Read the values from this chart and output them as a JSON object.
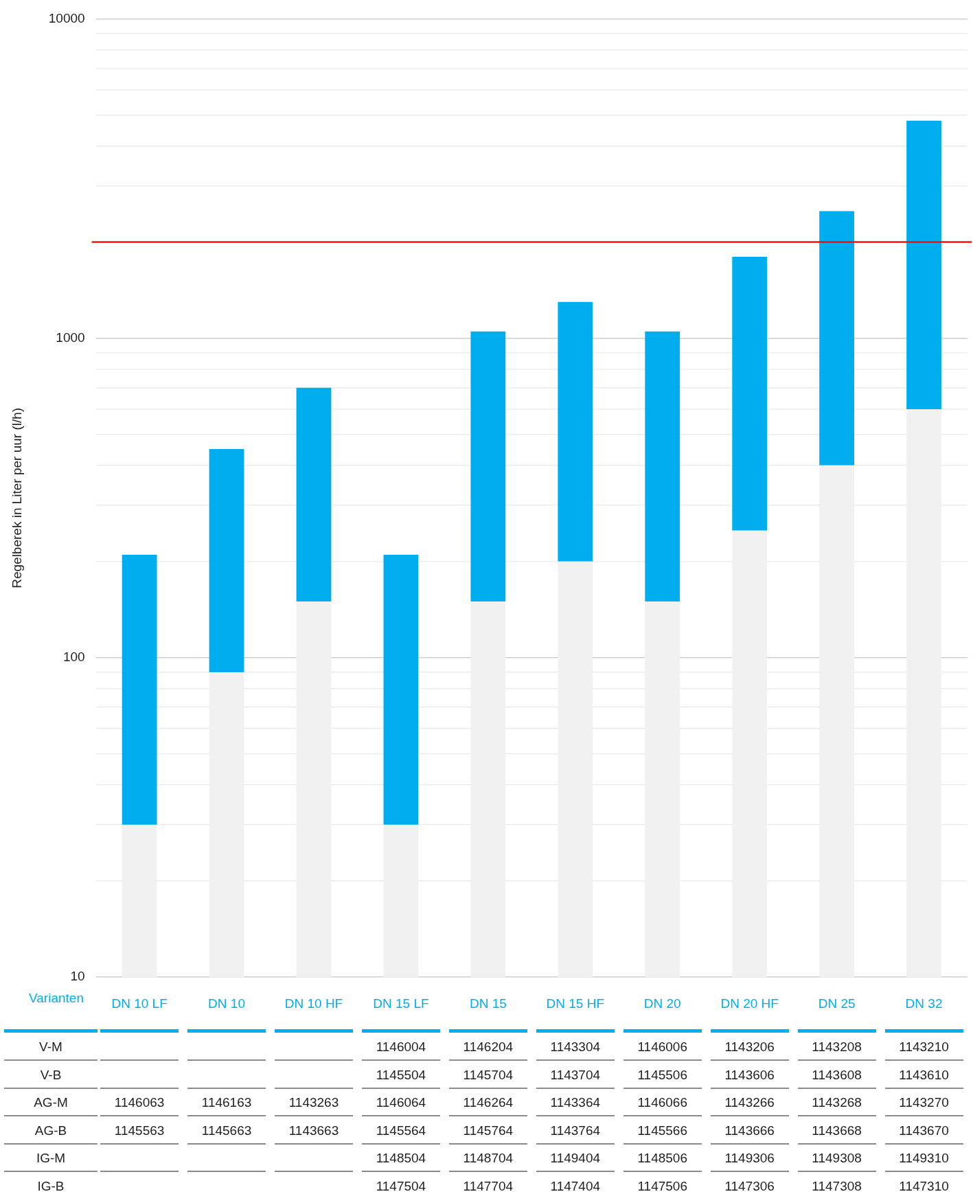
{
  "chart_data": {
    "type": "bar",
    "ylabel": "Regelberek in Liter per uur (l/h)",
    "categories": [
      "DN 10 LF",
      "DN 10",
      "DN 10 HF",
      "DN 15 LF",
      "DN 15",
      "DN 15 HF",
      "DN 20",
      "DN 20 HF",
      "DN 25",
      "DN 32"
    ],
    "stacked": true,
    "series": [
      {
        "color": "#f1f1f1",
        "values": [
          30,
          90,
          150,
          30,
          150,
          200,
          150,
          250,
          400,
          600
        ]
      },
      {
        "color": "#00aeef",
        "values": [
          180,
          360,
          550,
          180,
          900,
          1100,
          900,
          1550,
          2100,
          4200
        ]
      }
    ],
    "log": "y",
    "ylim": [
      10,
      10000
    ],
    "yticks": [
      10,
      {
        "value": 20,
        "label": null
      },
      {
        "value": 30,
        "label": null
      },
      {
        "value": 40,
        "label": null
      },
      {
        "value": 50,
        "label": null
      },
      {
        "value": 60,
        "label": null
      },
      {
        "value": 70,
        "label": null
      },
      {
        "value": 80,
        "label": null
      },
      {
        "value": 90,
        "label": null
      },
      100,
      {
        "value": 200,
        "label": null
      },
      {
        "value": 300,
        "label": null
      },
      {
        "value": 400,
        "label": null
      },
      {
        "value": 500,
        "label": null
      },
      {
        "value": 600,
        "label": null
      },
      {
        "value": 700,
        "label": null
      },
      {
        "value": 800,
        "label": null
      },
      {
        "value": 900,
        "label": null
      },
      1000,
      {
        "value": 2000,
        "label": null
      },
      {
        "value": 3000,
        "label": null
      },
      {
        "value": 4000,
        "label": null
      },
      {
        "value": 5000,
        "label": null
      },
      {
        "value": 6000,
        "label": null
      },
      {
        "value": 7000,
        "label": null
      },
      {
        "value": 8000,
        "label": null
      },
      {
        "value": 9000,
        "label": null
      },
      10000
    ],
    "grid": "y",
    "ref_lines": [
      {
        "axis": "y",
        "value": 2000,
        "color": "#ee1111"
      }
    ],
    "annotations": [
      "Varianten",
      "V-M",
      "1146004",
      "1146204",
      "1143304",
      "1146006",
      "1143206",
      "1143208",
      "1143210",
      "V-B",
      "1145504",
      "1145704",
      "1143704",
      "1145506",
      "1143606",
      "1143608",
      "1143610",
      "AG-M",
      "1146063",
      "1146163",
      "1143263",
      "1146064",
      "1146264",
      "1143364",
      "1146066",
      "1143266",
      "1143268",
      "1143270",
      "AG-B",
      "1145563",
      "1145663",
      "1143663",
      "1145564",
      "1145764",
      "1143764",
      "1145566",
      "1143666",
      "1143668",
      "1143670",
      "IG-M",
      "1148504",
      "1148704",
      "1149404",
      "1148506",
      "1149306",
      "1149308",
      "1149310",
      "IG-B",
      "1147504",
      "1147704",
      "1147404",
      "1147506",
      "1147306",
      "1147308",
      "1147310"
    ]
  }
}
